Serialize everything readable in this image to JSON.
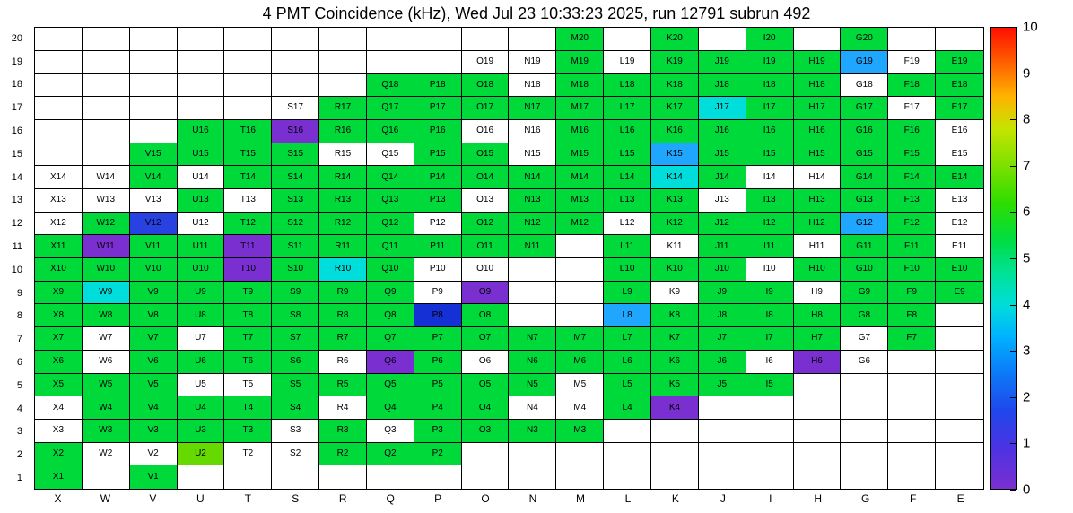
{
  "title": "4 PMT Coincidence (kHz), Wed Jul 23 10:33:23 2025, run 12791 subrun 492",
  "chart_data": {
    "type": "heatmap",
    "title": "4 PMT Coincidence (kHz), Wed Jul 23 10:33:23 2025, run 12791 subrun 492",
    "unit": "kHz",
    "xlabel": "",
    "ylabel": "",
    "zlim": [
      0,
      10
    ],
    "grid_lines": true,
    "columns": [
      "X",
      "W",
      "V",
      "U",
      "T",
      "S",
      "R",
      "Q",
      "P",
      "O",
      "N",
      "M",
      "L",
      "K",
      "J",
      "I",
      "H",
      "G",
      "F",
      "E"
    ],
    "rows": [
      20,
      19,
      18,
      17,
      16,
      15,
      14,
      13,
      12,
      11,
      10,
      9,
      8,
      7,
      6,
      5,
      4,
      3,
      2,
      1
    ],
    "palette": {
      "g": {
        "name": "green",
        "color": "#00d93a",
        "value": 5
      },
      "c": {
        "name": "cyan",
        "color": "#00dedb",
        "value": 4
      },
      "lb": {
        "name": "light-blue",
        "color": "#1fa7ff",
        "value": 3
      },
      "b": {
        "name": "blue",
        "color": "#2742e0",
        "value": 2
      },
      "db": {
        "name": "dark-blue",
        "color": "#1530d4",
        "value": 1.5
      },
      "p": {
        "name": "purple",
        "color": "#7a2fd0",
        "value": 0.5
      },
      "lime": {
        "name": "lime",
        "color": "#66d900",
        "value": 6
      },
      "w": {
        "name": "white-zero",
        "color": "#ffffff",
        "value": 0
      }
    },
    "colorbar": {
      "ticks": [
        0,
        1,
        2,
        3,
        4,
        5,
        6,
        7,
        8,
        9,
        10
      ],
      "gradient": [
        {
          "pos": 0.0,
          "color": "#7a2fd0"
        },
        {
          "pos": 0.09,
          "color": "#4b33e2"
        },
        {
          "pos": 0.17,
          "color": "#1f48ec"
        },
        {
          "pos": 0.26,
          "color": "#0a80f8"
        },
        {
          "pos": 0.33,
          "color": "#00b2ff"
        },
        {
          "pos": 0.4,
          "color": "#00ded8"
        },
        {
          "pos": 0.47,
          "color": "#00e294"
        },
        {
          "pos": 0.54,
          "color": "#00dd42"
        },
        {
          "pos": 0.62,
          "color": "#2edd00"
        },
        {
          "pos": 0.7,
          "color": "#7ce000"
        },
        {
          "pos": 0.78,
          "color": "#c4e400"
        },
        {
          "pos": 0.85,
          "color": "#ffb400"
        },
        {
          "pos": 0.93,
          "color": "#ff5a00"
        },
        {
          "pos": 1.0,
          "color": "#ff0f00"
        }
      ]
    },
    "grid": [
      [
        "",
        "",
        "",
        "",
        "",
        "",
        "",
        "",
        "",
        "",
        "",
        "M20:g",
        "",
        "K20:g",
        "",
        "I20:g",
        "",
        "G20:g",
        "",
        ""
      ],
      [
        "",
        "",
        "",
        "",
        "",
        "",
        "",
        "",
        "",
        "O19:w",
        "N19:w",
        "M19:g",
        "L19:w",
        "K19:g",
        "J19:g",
        "I19:g",
        "H19:g",
        "G19:lb",
        "F19:w",
        "E19:g"
      ],
      [
        "",
        "",
        "",
        "",
        "",
        "",
        "",
        "Q18:g",
        "P18:g",
        "O18:g",
        "N18:w",
        "M18:g",
        "L18:g",
        "K18:g",
        "J18:g",
        "I18:g",
        "H18:g",
        "G18:w",
        "F18:g",
        "E18:g"
      ],
      [
        "",
        "",
        "",
        "",
        "",
        "S17:w",
        "R17:g",
        "Q17:g",
        "P17:g",
        "O17:g",
        "N17:g",
        "M17:g",
        "L17:g",
        "K17:g",
        "J17:c",
        "I17:g",
        "H17:g",
        "G17:g",
        "F17:w",
        "E17:g"
      ],
      [
        "",
        "",
        "",
        "U16:g",
        "T16:g",
        "S16:p",
        "R16:g",
        "Q16:g",
        "P16:g",
        "O16:w",
        "N16:w",
        "M16:g",
        "L16:g",
        "K16:g",
        "J16:g",
        "I16:g",
        "H16:g",
        "G16:g",
        "F16:g",
        "E16:w"
      ],
      [
        "",
        "",
        "V15:g",
        "U15:g",
        "T15:g",
        "S15:g",
        "R15:w",
        "Q15:w",
        "P15:g",
        "O15:g",
        "N15:w",
        "M15:g",
        "L15:g",
        "K15:lb",
        "J15:g",
        "I15:g",
        "H15:g",
        "G15:g",
        "F15:g",
        "E15:w"
      ],
      [
        "X14:w",
        "W14:w",
        "V14:g",
        "U14:w",
        "T14:g",
        "S14:g",
        "R14:g",
        "Q14:g",
        "P14:g",
        "O14:g",
        "N14:g",
        "M14:g",
        "L14:g",
        "K14:c",
        "J14:g",
        "I14:w",
        "H14:w",
        "G14:g",
        "F14:g",
        "E14:g"
      ],
      [
        "X13:w",
        "W13:w",
        "V13:w",
        "U13:g",
        "T13:w",
        "S13:g",
        "R13:g",
        "Q13:g",
        "P13:g",
        "O13:w",
        "N13:g",
        "M13:g",
        "L13:g",
        "K13:g",
        "J13:w",
        "I13:g",
        "H13:g",
        "G13:g",
        "F13:g",
        "E13:w"
      ],
      [
        "X12:w",
        "W12:g",
        "V12:b",
        "U12:w",
        "T12:g",
        "S12:g",
        "R12:g",
        "Q12:g",
        "P12:w",
        "O12:g",
        "N12:g",
        "M12:g",
        "L12:w",
        "K12:g",
        "J12:g",
        "I12:g",
        "H12:g",
        "G12:lb",
        "F12:g",
        "E12:w"
      ],
      [
        "X11:g",
        "W11:p",
        "V11:g",
        "U11:g",
        "T11:p",
        "S11:g",
        "R11:g",
        "Q11:g",
        "P11:g",
        "O11:g",
        "N11:g",
        "",
        "L11:g",
        "K11:w",
        "J11:g",
        "I11:g",
        "H11:w",
        "G11:g",
        "F11:g",
        "E11:w"
      ],
      [
        "X10:g",
        "W10:g",
        "V10:g",
        "U10:g",
        "T10:p",
        "S10:g",
        "R10:c",
        "Q10:g",
        "P10:w",
        "O10:w",
        "",
        "",
        "L10:g",
        "K10:g",
        "J10:g",
        "I10:w",
        "H10:g",
        "G10:g",
        "F10:g",
        "E10:g"
      ],
      [
        "X9:g",
        "W9:c",
        "V9:g",
        "U9:g",
        "T9:g",
        "S9:g",
        "R9:g",
        "Q9:g",
        "P9:w",
        "O9:p",
        "",
        "",
        "L9:g",
        "K9:w",
        "J9:g",
        "I9:g",
        "H9:w",
        "G9:g",
        "F9:g",
        "E9:g"
      ],
      [
        "X8:g",
        "W8:g",
        "V8:g",
        "U8:g",
        "T8:g",
        "S8:g",
        "R8:g",
        "Q8:g",
        "P8:db",
        "O8:g",
        "",
        "",
        "L8:lb",
        "K8:g",
        "J8:g",
        "I8:g",
        "H8:g",
        "G8:g",
        "F8:g",
        ""
      ],
      [
        "X7:g",
        "W7:w",
        "V7:g",
        "U7:w",
        "T7:g",
        "S7:g",
        "R7:g",
        "Q7:g",
        "P7:g",
        "O7:g",
        "N7:g",
        "M7:g",
        "L7:g",
        "K7:g",
        "J7:g",
        "I7:g",
        "H7:g",
        "G7:w",
        "F7:g",
        ""
      ],
      [
        "X6:g",
        "W6:w",
        "V6:g",
        "U6:g",
        "T6:g",
        "S6:g",
        "R6:w",
        "Q6:p",
        "P6:g",
        "O6:w",
        "N6:g",
        "M6:g",
        "L6:g",
        "K6:g",
        "J6:g",
        "I6:w",
        "H6:p",
        "G6:w",
        "",
        ""
      ],
      [
        "X5:g",
        "W5:g",
        "V5:g",
        "U5:w",
        "T5:w",
        "S5:g",
        "R5:g",
        "Q5:g",
        "P5:g",
        "O5:g",
        "N5:g",
        "M5:w",
        "L5:g",
        "K5:g",
        "J5:g",
        "I5:g",
        "",
        "",
        "",
        ""
      ],
      [
        "X4:w",
        "W4:g",
        "V4:g",
        "U4:g",
        "T4:g",
        "S4:g",
        "R4:w",
        "Q4:g",
        "P4:g",
        "O4:g",
        "N4:w",
        "M4:w",
        "L4:g",
        "K4:p",
        "",
        "",
        "",
        "",
        "",
        ""
      ],
      [
        "X3:w",
        "W3:g",
        "V3:g",
        "U3:g",
        "T3:g",
        "S3:w",
        "R3:g",
        "Q3:w",
        "P3:g",
        "O3:g",
        "N3:g",
        "M3:g",
        "",
        "",
        "",
        "",
        "",
        "",
        "",
        ""
      ],
      [
        "X2:g",
        "W2:w",
        "V2:w",
        "U2:lime",
        "T2:w",
        "S2:w",
        "R2:g",
        "Q2:g",
        "P2:g",
        "",
        "",
        "",
        "",
        "",
        "",
        "",
        "",
        "",
        "",
        ""
      ],
      [
        "X1:g",
        "",
        "V1:g",
        "",
        "",
        "",
        "",
        "",
        "",
        "",
        "",
        "",
        "",
        "",
        "",
        "",
        "",
        "",
        "",
        ""
      ]
    ]
  }
}
